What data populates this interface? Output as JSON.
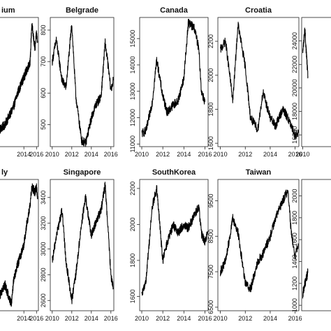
{
  "chart_data": [
    {
      "type": "line",
      "title": "Belgium",
      "display_title": "ium",
      "x": [
        "2010-01",
        "2011-01",
        "2012-01",
        "2012-06",
        "2013-01",
        "2014-01",
        "2015-01",
        "2015-04",
        "2015-10",
        "2016-01",
        "2016-03"
      ],
      "y": [
        480,
        500,
        540,
        560,
        600,
        650,
        700,
        820,
        740,
        790,
        760
      ],
      "xticks": [
        "2014",
        "2016"
      ],
      "yticks": [],
      "xlim": [
        2010.0,
        2016.3
      ],
      "ylim": [
        430,
        840
      ]
    },
    {
      "type": "line",
      "title": "Belgrade",
      "x": [
        "2010-01",
        "2010-06",
        "2011-01",
        "2011-06",
        "2012-01",
        "2012-06",
        "2013-01",
        "2013-06",
        "2014-01",
        "2014-06",
        "2015-01",
        "2015-06",
        "2015-09",
        "2016-01",
        "2016-04"
      ],
      "y": [
        700,
        770,
        640,
        620,
        820,
        590,
        450,
        440,
        520,
        560,
        590,
        760,
        700,
        610,
        640
      ],
      "xticks": [
        "2010",
        "2012",
        "2014",
        "2016"
      ],
      "yticks": [
        "500",
        "600",
        "700",
        "800"
      ],
      "xlim": [
        2009.8,
        2016.3
      ],
      "ylim": [
        430,
        840
      ]
    },
    {
      "type": "line",
      "title": "Canada",
      "x": [
        "2010-01",
        "2010-06",
        "2011-01",
        "2011-06",
        "2012-01",
        "2012-06",
        "2013-01",
        "2013-06",
        "2014-01",
        "2014-06",
        "2015-01",
        "2015-06",
        "2015-09",
        "2016-01"
      ],
      "y": [
        11400,
        11500,
        12600,
        14200,
        12800,
        12200,
        12500,
        12600,
        13500,
        15600,
        15400,
        14600,
        13000,
        12600
      ],
      "xticks": [
        "2010",
        "2012",
        "2014",
        "2016"
      ],
      "yticks": [
        "11000",
        "12000",
        "13000",
        "14000",
        "15000"
      ],
      "xlim": [
        2009.8,
        2016.3
      ],
      "ylim": [
        10900,
        15800
      ]
    },
    {
      "type": "line",
      "title": "Croatia",
      "x": [
        "2010-01",
        "2010-06",
        "2011-01",
        "2011-06",
        "2012-01",
        "2012-06",
        "2013-01",
        "2013-06",
        "2014-01",
        "2014-06",
        "2015-01",
        "2015-06",
        "2015-09",
        "2016-01",
        "2016-04"
      ],
      "y": [
        2150,
        2200,
        1850,
        2300,
        2050,
        1750,
        1680,
        1900,
        1750,
        1700,
        1800,
        1750,
        1700,
        1650,
        1660
      ],
      "xticks": [
        "2010",
        "2012",
        "2014",
        "2016"
      ],
      "yticks": [
        "1600",
        "1800",
        "2000",
        "2200"
      ],
      "xlim": [
        2009.8,
        2016.3
      ],
      "ylim": [
        1580,
        2340
      ]
    },
    {
      "type": "line",
      "title": "",
      "x": [
        "2010-01",
        "2010-06",
        "2011-01"
      ],
      "y": [
        23000,
        25000,
        21000
      ],
      "xticks": [
        "2010"
      ],
      "yticks": [
        "16000",
        "18000",
        "20000",
        "22000",
        "24000"
      ],
      "xlim": [
        2009.8,
        2016.3
      ],
      "ylim": [
        15000,
        26000
      ]
    },
    {
      "type": "line",
      "title": "Italy",
      "display_title": "ly",
      "x": [
        "2010-01",
        "2011-01",
        "2012-01",
        "2012-06",
        "2013-01",
        "2014-01",
        "2014-06",
        "2015-01",
        "2015-04",
        "2015-10",
        "2016-01",
        "2016-03"
      ],
      "y": [
        1200,
        1400,
        1100,
        1500,
        1700,
        2000,
        2300,
        2600,
        2900,
        2800,
        2900,
        2700
      ],
      "xticks": [
        "2014",
        "2016"
      ],
      "yticks": [],
      "xlim": [
        2010.0,
        2016.3
      ],
      "ylim": [
        1000,
        3000
      ]
    },
    {
      "type": "line",
      "title": "Singapore",
      "x": [
        "2010-01",
        "2010-06",
        "2011-01",
        "2011-06",
        "2012-01",
        "2012-06",
        "2013-01",
        "2013-06",
        "2014-01",
        "2014-06",
        "2015-01",
        "2015-06",
        "2015-09",
        "2016-01",
        "2016-04"
      ],
      "y": [
        2900,
        3100,
        3300,
        2900,
        2600,
        2800,
        3200,
        3400,
        3100,
        3200,
        3300,
        3500,
        3200,
        2800,
        2700
      ],
      "xticks": [
        "2010",
        "2012",
        "2014",
        "2016"
      ],
      "yticks": [
        "2600",
        "2800",
        "3000",
        "3200",
        "3400"
      ],
      "xlim": [
        2009.8,
        2016.3
      ],
      "ylim": [
        2520,
        3540
      ]
    },
    {
      "type": "line",
      "title": "SouthKorea",
      "x": [
        "2010-01",
        "2010-06",
        "2011-01",
        "2011-06",
        "2012-01",
        "2012-06",
        "2013-01",
        "2013-06",
        "2014-01",
        "2014-06",
        "2015-01",
        "2015-06",
        "2015-09",
        "2016-01",
        "2016-04"
      ],
      "y": [
        1600,
        1700,
        2100,
        2200,
        1800,
        1900,
        2000,
        1950,
        2000,
        1980,
        2050,
        2100,
        1950,
        1900,
        1950
      ],
      "xticks": [
        "2010",
        "2012",
        "2014",
        "2016"
      ],
      "yticks": [
        "1600",
        "1800",
        "2000",
        "2200"
      ],
      "xlim": [
        2009.8,
        2016.3
      ],
      "ylim": [
        1520,
        2250
      ]
    },
    {
      "type": "line",
      "title": "Taiwan",
      "x": [
        "2010-01",
        "2010-06",
        "2011-01",
        "2011-06",
        "2012-01",
        "2012-06",
        "2013-01",
        "2013-06",
        "2014-01",
        "2014-06",
        "2015-01",
        "2015-06",
        "2015-09",
        "2016-01",
        "2016-04"
      ],
      "y": [
        7500,
        7800,
        9000,
        8600,
        7200,
        7000,
        7800,
        8000,
        8500,
        9000,
        9500,
        9800,
        8700,
        7900,
        8300
      ],
      "xticks": [
        "2010",
        "2012",
        "2014",
        "2016"
      ],
      "yticks": [
        "6500",
        "7500",
        "8500",
        "9500"
      ],
      "xlim": [
        2009.8,
        2016.3
      ],
      "ylim": [
        6400,
        10100
      ]
    },
    {
      "type": "line",
      "title": "",
      "x": [
        "2010-01",
        "2010-06",
        "2011-01"
      ],
      "y": [
        1100,
        1200,
        1300
      ],
      "xticks": [],
      "yticks": [
        "1000",
        "1200",
        "1400",
        "1600",
        "1800",
        "2000"
      ],
      "xlim": [
        2009.8,
        2016.3
      ],
      "ylim": [
        950,
        2150
      ]
    }
  ]
}
